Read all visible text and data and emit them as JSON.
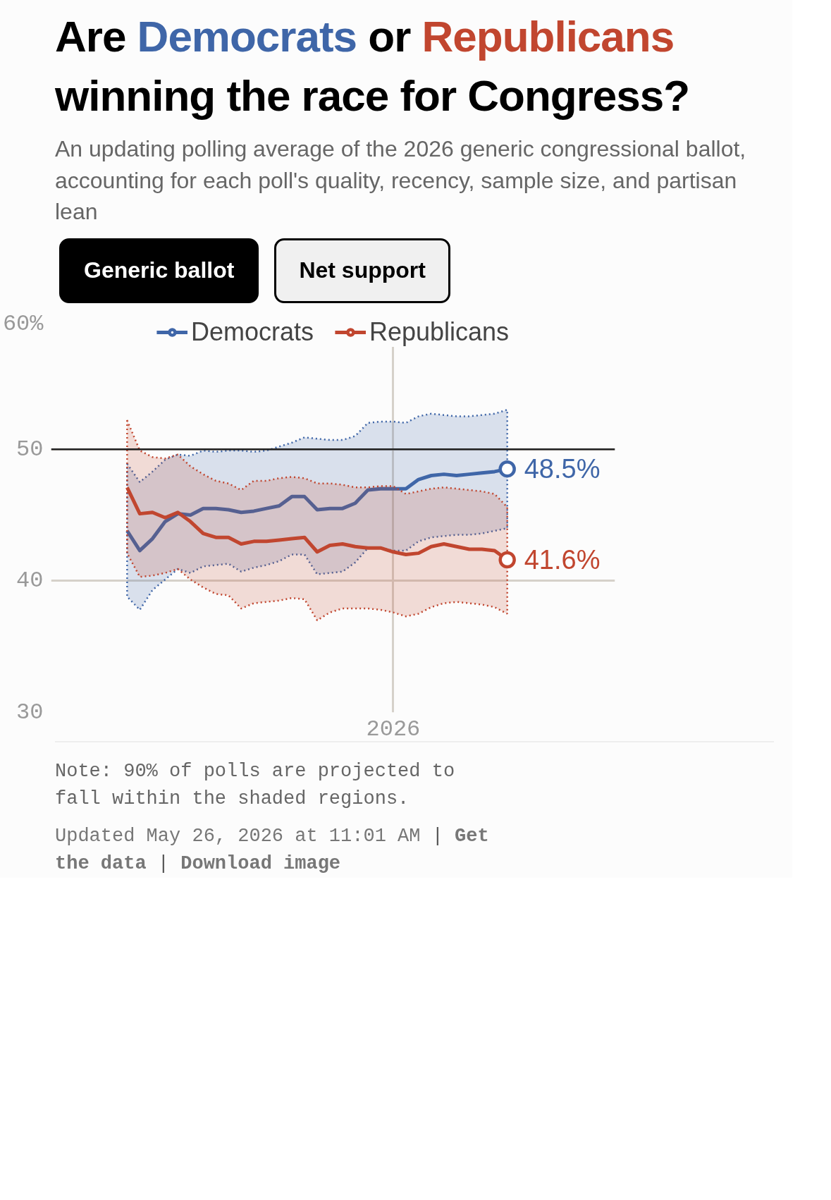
{
  "chart_data": {
    "type": "line",
    "title": "Are Democrats or Republicans winning the race for Congress?",
    "subtitle": "An updating polling average of the 2026 generic congressional ballot, accounting for each poll's quality, recency, sample size, and partisan lean",
    "categories": [
      null,
      null,
      null,
      null,
      null,
      null,
      null,
      null,
      null,
      null,
      null,
      null,
      null,
      null,
      null,
      null,
      null,
      null,
      null,
      null,
      null,
      "2026",
      null,
      null,
      null,
      null,
      null,
      null,
      null,
      null,
      null
    ],
    "series": [
      {
        "name": "Democrats",
        "color": "#3f66a8",
        "values": [
          43.8,
          42.3,
          43.2,
          44.5,
          45.1,
          45.0,
          45.5,
          45.5,
          45.4,
          45.2,
          45.3,
          45.5,
          45.7,
          46.4,
          46.4,
          45.4,
          45.5,
          45.5,
          45.9,
          46.9,
          47.0,
          47.0,
          47.0,
          47.7,
          48.0,
          48.1,
          48.0,
          48.1,
          48.2,
          48.3,
          48.5
        ],
        "upper": [
          48.9,
          47.5,
          48.3,
          49.2,
          49.6,
          49.5,
          49.9,
          49.8,
          49.9,
          49.9,
          49.8,
          49.9,
          50.2,
          50.5,
          50.9,
          50.8,
          50.7,
          50.7,
          51.0,
          52.0,
          52.1,
          52.1,
          52.0,
          52.5,
          52.7,
          52.6,
          52.5,
          52.5,
          52.6,
          52.7,
          53.0
        ],
        "lower": [
          38.8,
          37.8,
          39.3,
          40.1,
          40.9,
          40.6,
          41.1,
          41.2,
          41.3,
          40.7,
          41.0,
          41.2,
          41.5,
          42.0,
          42.0,
          40.5,
          40.6,
          40.7,
          41.4,
          42.5,
          42.5,
          42.3,
          42.3,
          43.0,
          43.3,
          43.4,
          43.5,
          43.5,
          43.6,
          43.8,
          44.0
        ],
        "value_labels": [
          null,
          null,
          null,
          null,
          null,
          null,
          null,
          null,
          null,
          null,
          null,
          null,
          null,
          null,
          null,
          null,
          null,
          null,
          null,
          null,
          null,
          null,
          null,
          null,
          null,
          null,
          null,
          null,
          null,
          null,
          "48.5%"
        ]
      },
      {
        "name": "Republicans",
        "color": "#c1462f",
        "values": [
          47.1,
          45.1,
          45.2,
          44.8,
          45.2,
          44.5,
          43.6,
          43.3,
          43.3,
          42.8,
          43.0,
          43.0,
          43.1,
          43.2,
          43.3,
          42.2,
          42.7,
          42.8,
          42.6,
          42.5,
          42.5,
          42.2,
          42.0,
          42.1,
          42.6,
          42.8,
          42.6,
          42.4,
          42.4,
          42.3,
          41.6
        ],
        "upper": [
          52.2,
          49.9,
          49.4,
          49.3,
          49.6,
          48.7,
          48.1,
          47.6,
          47.4,
          46.9,
          47.6,
          47.6,
          47.8,
          47.9,
          47.8,
          47.4,
          47.4,
          47.3,
          47.1,
          47.1,
          47.2,
          47.2,
          46.6,
          46.8,
          47.0,
          47.1,
          47.0,
          46.9,
          46.8,
          46.6,
          45.6
        ],
        "lower": [
          42.1,
          40.3,
          40.4,
          40.6,
          40.9,
          40.1,
          39.5,
          39.0,
          38.9,
          37.9,
          38.3,
          38.4,
          38.5,
          38.7,
          38.6,
          37.0,
          37.6,
          37.9,
          37.9,
          37.9,
          37.8,
          37.6,
          37.3,
          37.5,
          38.0,
          38.3,
          38.4,
          38.3,
          38.2,
          38.0,
          37.5
        ],
        "value_labels": [
          null,
          null,
          null,
          null,
          null,
          null,
          null,
          null,
          null,
          null,
          null,
          null,
          null,
          null,
          null,
          null,
          null,
          null,
          null,
          null,
          null,
          null,
          null,
          null,
          null,
          null,
          null,
          null,
          null,
          null,
          "41.6%"
        ]
      }
    ],
    "ylim": [
      30,
      60
    ],
    "yticks": [
      30,
      40,
      50,
      {
        "value": 60,
        "label": "60%"
      }
    ],
    "ref_lines": [
      {
        "axis": "y",
        "value": 50,
        "color": "#222222"
      }
    ],
    "grid": true,
    "legend": "top",
    "line_style": "solid",
    "annotations": [
      "Generic ballot",
      "Net support",
      "Note: 90% of polls are projected to fall within the shaded regions.",
      "Updated May 26, 2026 at 11:01 AM | Get the data | Download image"
    ]
  }
}
